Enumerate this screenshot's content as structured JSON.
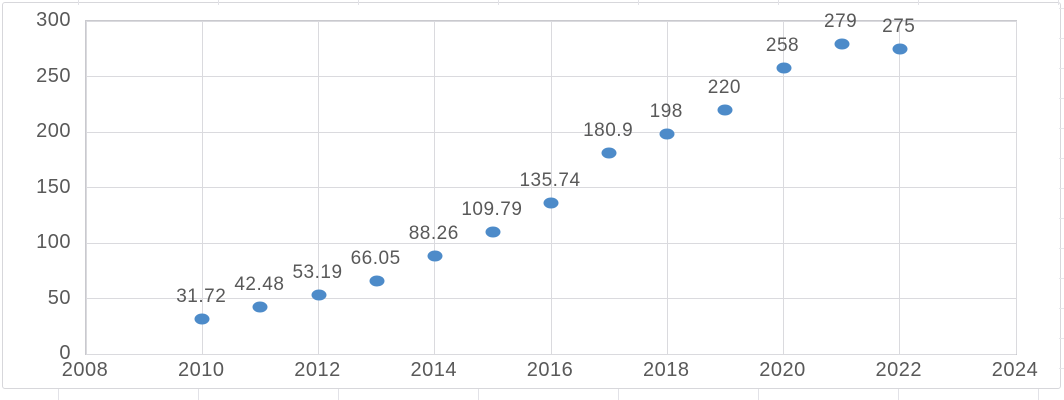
{
  "chart_data": {
    "type": "scatter",
    "title": "",
    "xlabel": "",
    "ylabel": "",
    "legend": "none",
    "grid": true,
    "xlim": [
      2008,
      2024
    ],
    "ylim": [
      0,
      300
    ],
    "x_ticks": [
      2008,
      2010,
      2012,
      2014,
      2016,
      2018,
      2020,
      2022,
      2024
    ],
    "y_ticks": [
      0,
      50,
      100,
      150,
      200,
      250,
      300
    ],
    "series": [
      {
        "name": "values-by-year",
        "x": [
          2010,
          2011,
          2012,
          2013,
          2014,
          2015,
          2016,
          2017,
          2018,
          2019,
          2020,
          2021,
          2022
        ],
        "y": [
          31.72,
          42.48,
          53.19,
          66.05,
          88.26,
          109.79,
          135.74,
          180.9,
          198,
          220,
          258,
          279,
          275
        ],
        "labels": [
          "31.72",
          "42.48",
          "53.19",
          "66.05",
          "88.26",
          "109.79",
          "135.74",
          "180.9",
          "198",
          "220",
          "258",
          "279",
          "275"
        ]
      }
    ],
    "colors": {
      "marker": "#4d8bc9",
      "axis_text": "#595959",
      "data_label_text": "#595959",
      "gridline": "#dadade",
      "plot_border": "#c9c9ce",
      "chart_background": "#ffffff"
    }
  }
}
